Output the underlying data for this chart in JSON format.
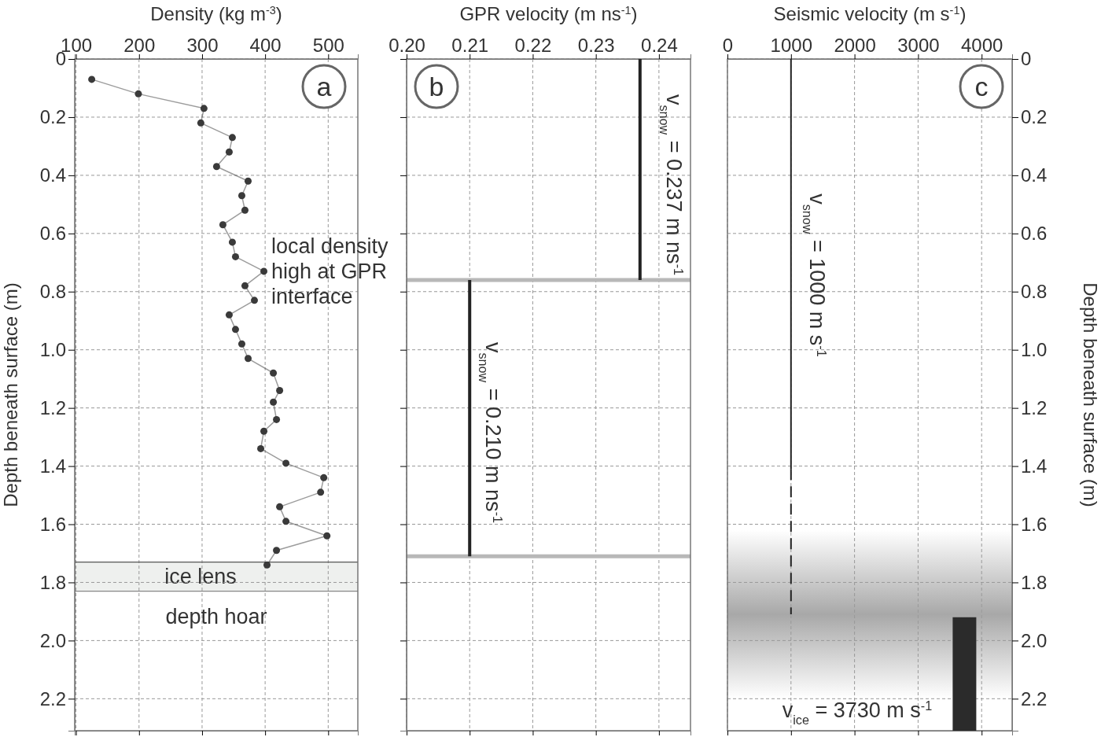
{
  "chart_data": [
    {
      "type": "line",
      "xlabel": "Density (kg m$^{-3}$)",
      "ylabel": "Depth beneath surface (m)",
      "xlim": [
        98,
        547
      ],
      "xticks": [
        100,
        200,
        300,
        400,
        500
      ],
      "ylim": [
        2.31,
        0
      ],
      "yticks": [
        0,
        {
          "value": 0.2,
          "label": "0.2"
        },
        {
          "value": 0.4,
          "label": "0.4"
        },
        {
          "value": 0.6,
          "label": "0.6"
        },
        {
          "value": 0.8,
          "label": "0.8"
        },
        {
          "value": 1,
          "label": "1.0"
        },
        {
          "value": 1.2,
          "label": "1.2"
        },
        {
          "value": 1.4,
          "label": "1.4"
        },
        {
          "value": 1.6,
          "label": "1.6"
        },
        {
          "value": 1.8,
          "label": "1.8"
        },
        {
          "value": 2,
          "label": "2.0"
        },
        {
          "value": 2.2,
          "label": "2.2"
        }
      ],
      "grid": true,
      "marker": "circle",
      "series": [
        {
          "color": "#3a3a3a",
          "x": [
            125,
            199,
            303,
            298,
            348,
            343,
            323,
            373,
            363,
            368,
            333,
            348,
            353,
            398,
            368,
            383,
            343,
            353,
            363,
            373,
            413,
            423,
            413,
            418,
            398,
            393,
            433,
            493,
            488,
            423,
            433,
            498,
            418,
            403
          ],
          "values": [
            0.07,
            0.12,
            0.17,
            0.22,
            0.27,
            0.32,
            0.37,
            0.42,
            0.47,
            0.52,
            0.57,
            0.63,
            0.68,
            0.73,
            0.78,
            0.83,
            0.88,
            0.93,
            0.98,
            1.03,
            1.08,
            1.14,
            1.18,
            1.24,
            1.28,
            1.34,
            1.39,
            1.44,
            1.49,
            1.54,
            1.59,
            1.64,
            1.69,
            1.74
          ]
        }
      ],
      "bands": [
        {
          "axis": "y",
          "from": 1.73,
          "to": 1.83,
          "label": "ice lens",
          "color": "#eef0ee"
        }
      ],
      "ref_lines": [
        {
          "axis": "y",
          "value": 1.73,
          "color": "#555555"
        },
        {
          "axis": "y",
          "value": 1.83,
          "color": "#888888"
        }
      ],
      "annotations": [
        "a",
        "local density high at GPR interface",
        "depth hoar"
      ]
    },
    {
      "type": "line",
      "xlabel": "GPR velocity (m ns$^{-1}$)",
      "xlim": [
        0.2,
        0.245
      ],
      "xticks": [
        {
          "value": 0.2,
          "label": "0.20"
        },
        0.21,
        0.22,
        0.23,
        0.24
      ],
      "ylim": [
        2.31,
        0
      ],
      "yticks": [
        0,
        0.2,
        0.4,
        0.6,
        0.8,
        1,
        1.2,
        1.4,
        1.6,
        1.8,
        2,
        2.2
      ],
      "tick_labels": "x",
      "grid": true,
      "series": [
        {
          "color": "#222222",
          "x": [
            0.237,
            0.237
          ],
          "values": [
            0,
            0.76
          ]
        },
        {
          "color": "#222222",
          "x": [
            0.21,
            0.21
          ],
          "values": [
            0.76,
            1.71
          ]
        }
      ],
      "ref_lines": [
        {
          "axis": "y",
          "value": 0.76,
          "color": "#b8b8b8"
        },
        {
          "axis": "y",
          "value": 1.71,
          "color": "#b8b8b8"
        }
      ],
      "annotations": [
        "b",
        "v$_{snow}$ = 0.237 m ns$^{-1}$",
        "v$_{snow}$ = 0.210 m ns$^{-1}$"
      ]
    },
    {
      "type": "line",
      "xlabel": "Seismic velocity (m s$^{-1}$)",
      "y2label": "Depth beneath surface (m)",
      "xlim": [
        0,
        4480
      ],
      "xticks": [
        0,
        1000,
        2000,
        3000,
        4000
      ],
      "ylim": [
        2.31,
        0
      ],
      "yticks": [
        0,
        {
          "value": 0.2,
          "label": "0.2"
        },
        {
          "value": 0.4,
          "label": "0.4"
        },
        {
          "value": 0.6,
          "label": "0.6"
        },
        {
          "value": 0.8,
          "label": "0.8"
        },
        {
          "value": 1,
          "label": "1.0"
        },
        {
          "value": 1.2,
          "label": "1.2"
        },
        {
          "value": 1.4,
          "label": "1.4"
        },
        {
          "value": 1.6,
          "label": "1.6"
        },
        {
          "value": 1.8,
          "label": "1.8"
        },
        {
          "value": 2,
          "label": "2.0"
        },
        {
          "value": 2.2,
          "label": "2.2"
        }
      ],
      "grid": true,
      "series": [
        {
          "color": "#222222",
          "x": [
            1000,
            1000
          ],
          "values": [
            0,
            1.41
          ]
        },
        {
          "color": "#222222",
          "x": [
            1000,
            1000
          ],
          "values": [
            1.41,
            1.91
          ],
          "line_style": "dashed"
        },
        {
          "color": "#2b2b2b",
          "x": [
            3730,
            3730
          ],
          "values": [
            1.92,
            2.31
          ]
        }
      ],
      "bands": [
        {
          "axis": "y",
          "from": 1.62,
          "to": 2.2,
          "color": "#a8a8a8"
        }
      ],
      "annotations": [
        "c",
        "v$_{snow}$ = 1000 m s$^{-1}$",
        "v$_{ice}$ = 3730 m s$^{-1}$"
      ]
    }
  ]
}
